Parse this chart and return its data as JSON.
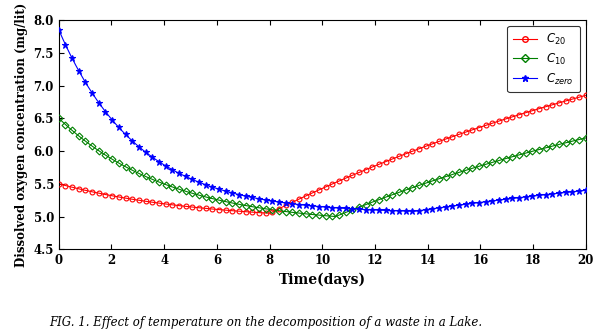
{
  "xlabel": "Time(days)",
  "ylabel": "Dissolved oxygen concentration (mg/lit)",
  "xlim": [
    0,
    20
  ],
  "ylim": [
    4.5,
    8
  ],
  "xticks": [
    0,
    2,
    4,
    6,
    8,
    10,
    12,
    14,
    16,
    18,
    20
  ],
  "yticks": [
    4.5,
    5,
    5.5,
    6,
    6.5,
    7,
    7.5,
    8
  ],
  "caption": "FIG. 1. Effect of temperature on the decomposition of a waste in a Lake.",
  "series": [
    {
      "label": "$C_{20}$",
      "color": "red",
      "marker": "o",
      "markersize": 3.5,
      "linewidth": 0.8,
      "fillstyle": "none",
      "start": 5.5,
      "k1": 0.15,
      "k2": 0.06,
      "min_day": 8.0,
      "min_val": 5.05,
      "end_val": 6.85
    },
    {
      "label": "$C_{10}$",
      "color": "green",
      "marker": "D",
      "markersize": 3.5,
      "linewidth": 0.8,
      "fillstyle": "none",
      "start": 6.5,
      "k1": 0.25,
      "k2": 0.055,
      "min_day": 10.5,
      "min_val": 5.0,
      "end_val": 6.2
    },
    {
      "label": "$C_{zero}$",
      "color": "blue",
      "marker": "*",
      "markersize": 4.5,
      "linewidth": 0.8,
      "fillstyle": "full",
      "start": 7.85,
      "k1": 0.45,
      "k2": 0.035,
      "min_day": 13.5,
      "min_val": 5.08,
      "end_val": 5.4
    }
  ],
  "legend_loc": "upper right",
  "figsize": [
    6.09,
    3.32
  ],
  "dpi": 100,
  "background_color": "#ffffff"
}
